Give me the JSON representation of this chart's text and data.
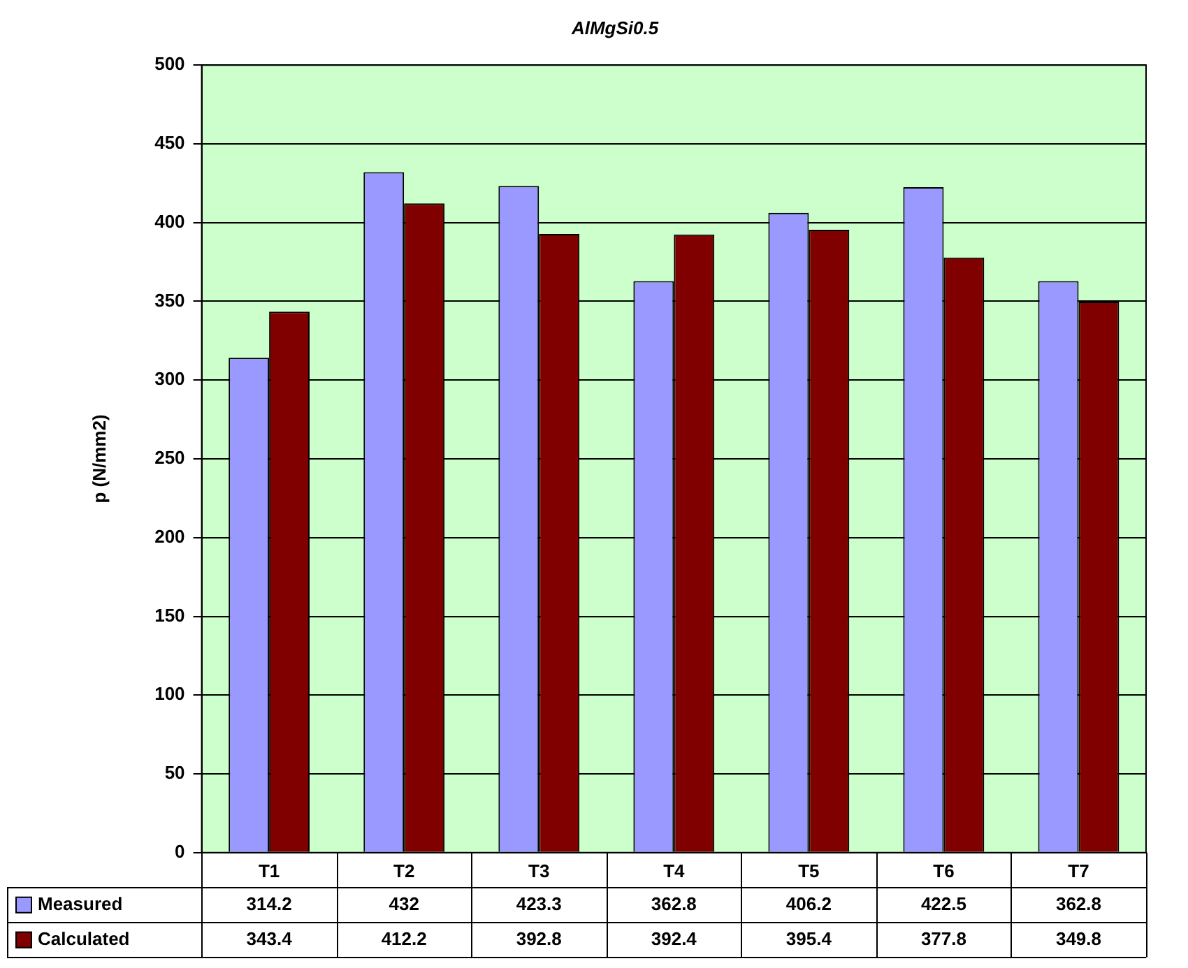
{
  "chart_data": {
    "type": "bar",
    "title": "AlMgSi0.5",
    "ylabel": "p (N/mm2)",
    "categories": [
      "T1",
      "T2",
      "T3",
      "T4",
      "T5",
      "T6",
      "T7"
    ],
    "series": [
      {
        "name": "Measured",
        "color": "#9999ff",
        "values": [
          314.2,
          432,
          423.3,
          362.8,
          406.2,
          422.5,
          362.8
        ]
      },
      {
        "name": "Calculated",
        "color": "#800000",
        "values": [
          343.4,
          412.2,
          392.8,
          392.4,
          395.4,
          377.8,
          349.8
        ]
      }
    ],
    "ylim": [
      0,
      500
    ],
    "yticks": [
      0,
      50,
      100,
      150,
      200,
      250,
      300,
      350,
      400,
      450,
      500
    ],
    "grid": "y",
    "legend": "bottom",
    "data_labels": true
  }
}
